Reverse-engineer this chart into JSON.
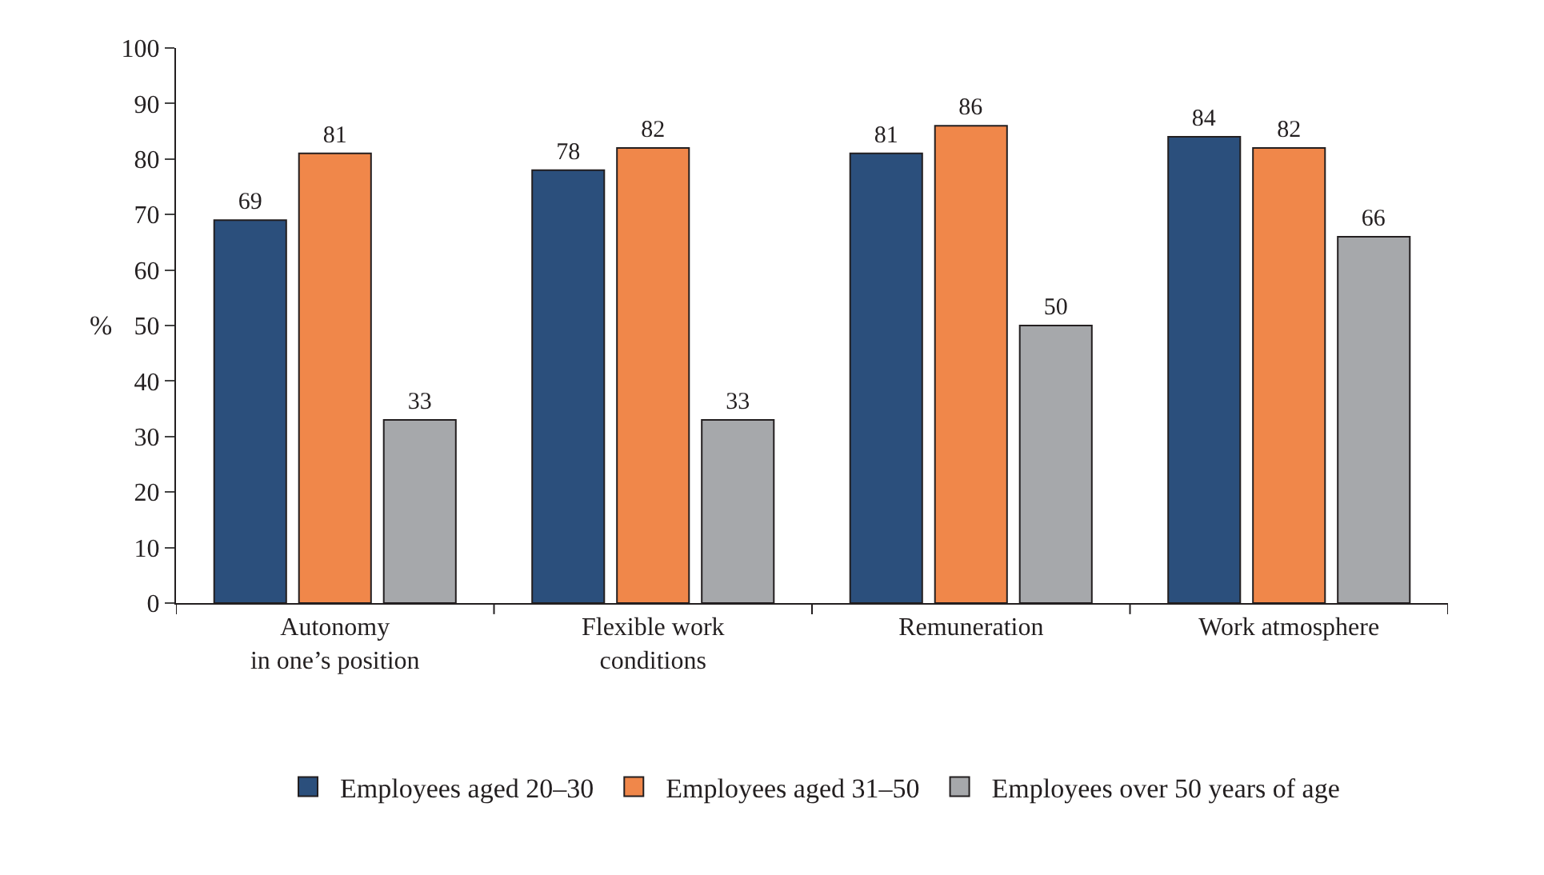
{
  "chart_data": {
    "type": "bar",
    "ylabel": "%",
    "categories": [
      "Autonomy\nin one’s position",
      "Flexible work\nconditions",
      "Remuneration",
      "Work atmosphere"
    ],
    "series": [
      {
        "name": "Employees aged 20–30",
        "color": "#2b4f7c",
        "values": [
          69,
          78,
          81,
          84
        ]
      },
      {
        "name": "Employees aged 31–50",
        "color": "#f0874a",
        "values": [
          81,
          82,
          86,
          82
        ]
      },
      {
        "name": "Employees over 50 years of age",
        "color": "#a6a8ab",
        "values": [
          33,
          33,
          50,
          66
        ]
      }
    ],
    "ylim": [
      0,
      100
    ],
    "yticks": [
      0,
      10,
      20,
      30,
      40,
      50,
      60,
      70,
      80,
      90,
      100
    ],
    "data_labels": true,
    "legend": "bottom"
  }
}
